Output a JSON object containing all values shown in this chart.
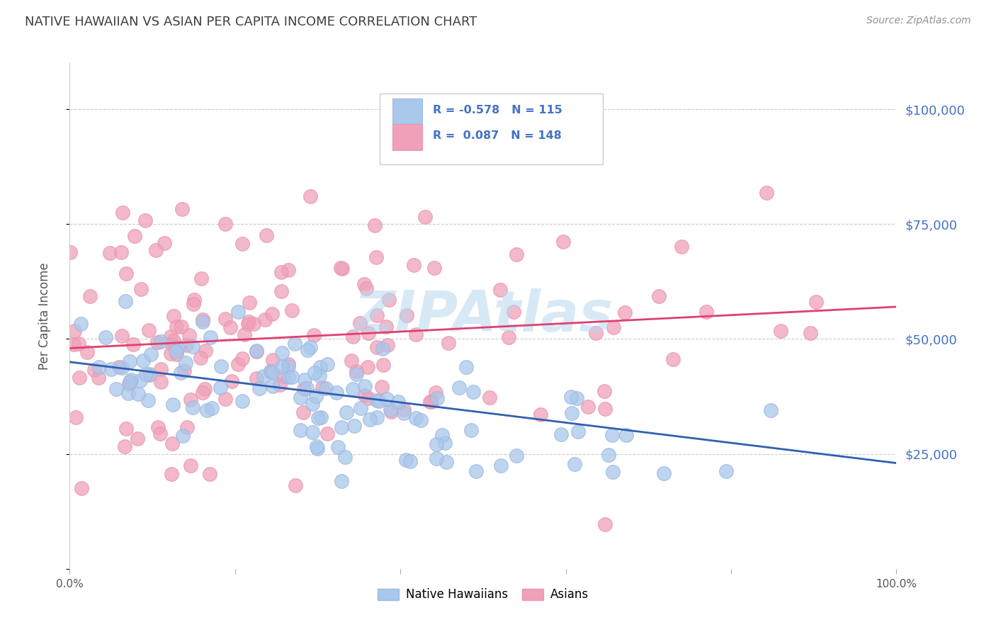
{
  "title": "NATIVE HAWAIIAN VS ASIAN PER CAPITA INCOME CORRELATION CHART",
  "source": "Source: ZipAtlas.com",
  "ylabel": "Per Capita Income",
  "yticks": [
    0,
    25000,
    50000,
    75000,
    100000
  ],
  "ytick_labels": [
    "",
    "$25,000",
    "$50,000",
    "$75,000",
    "$100,000"
  ],
  "color_blue": "#A8C8EC",
  "color_pink": "#F0A0B8",
  "color_blue_edge": "#A0B8E0",
  "color_pink_edge": "#E898B0",
  "color_blue_line": "#3060B0",
  "color_pink_line": "#E04070",
  "color_blue_text": "#4472C4",
  "color_title": "#404040",
  "color_source": "#909090",
  "color_yaxis_right": "#4472C4",
  "watermark_text": "ZIPAtlas",
  "background_color": "#FFFFFF",
  "grid_color": "#CCCCCC",
  "seed": 12,
  "n_blue": 115,
  "n_pink": 148,
  "r_blue": -0.578,
  "r_pink": 0.087,
  "xmin": 0.0,
  "xmax": 1.0,
  "ymin": 0,
  "ymax": 110000,
  "blue_line_y0": 45000,
  "blue_line_y1": 23000,
  "pink_line_y0": 48000,
  "pink_line_y1": 57000
}
